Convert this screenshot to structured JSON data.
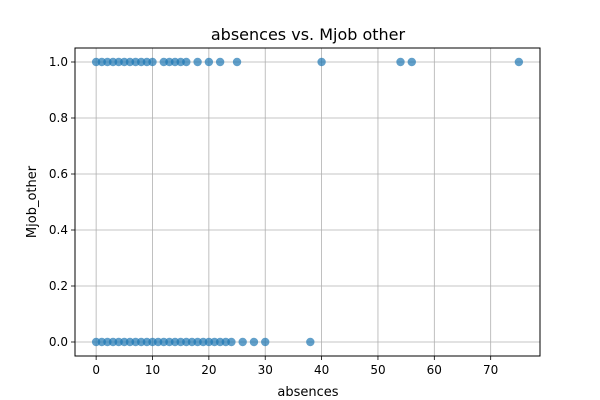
{
  "chart_data": {
    "type": "scatter",
    "title": "absences vs. Mjob other",
    "xlabel": "absences",
    "ylabel": "Mjob_other",
    "xlim": [
      -3.75,
      78.75
    ],
    "ylim": [
      -0.05,
      1.05
    ],
    "xticks": [
      0,
      10,
      20,
      30,
      40,
      50,
      60,
      70
    ],
    "yticks": [
      0.0,
      0.2,
      0.4,
      0.6,
      0.8,
      1.0
    ],
    "xtick_labels": [
      "0",
      "10",
      "20",
      "30",
      "40",
      "50",
      "60",
      "70"
    ],
    "ytick_labels": [
      "0.0",
      "0.2",
      "0.4",
      "0.6",
      "0.8",
      "1.0"
    ],
    "grid": true,
    "marker_color": "#1f77b4",
    "marker_alpha": 0.7,
    "series": [
      {
        "x": [
          0,
          1,
          2,
          3,
          4,
          5,
          6,
          7,
          8,
          9,
          10,
          12,
          13,
          14,
          15,
          16,
          18,
          20,
          22,
          25,
          40,
          54,
          56,
          75
        ],
        "y": [
          1,
          1,
          1,
          1,
          1,
          1,
          1,
          1,
          1,
          1,
          1,
          1,
          1,
          1,
          1,
          1,
          1,
          1,
          1,
          1,
          1,
          1,
          1,
          1
        ]
      },
      {
        "x": [
          0,
          1,
          2,
          3,
          4,
          5,
          6,
          7,
          8,
          9,
          10,
          11,
          12,
          13,
          14,
          15,
          16,
          17,
          18,
          19,
          20,
          21,
          22,
          23,
          24,
          26,
          28,
          30,
          38
        ],
        "y": [
          0,
          0,
          0,
          0,
          0,
          0,
          0,
          0,
          0,
          0,
          0,
          0,
          0,
          0,
          0,
          0,
          0,
          0,
          0,
          0,
          0,
          0,
          0,
          0,
          0,
          0,
          0,
          0,
          0
        ]
      }
    ]
  }
}
